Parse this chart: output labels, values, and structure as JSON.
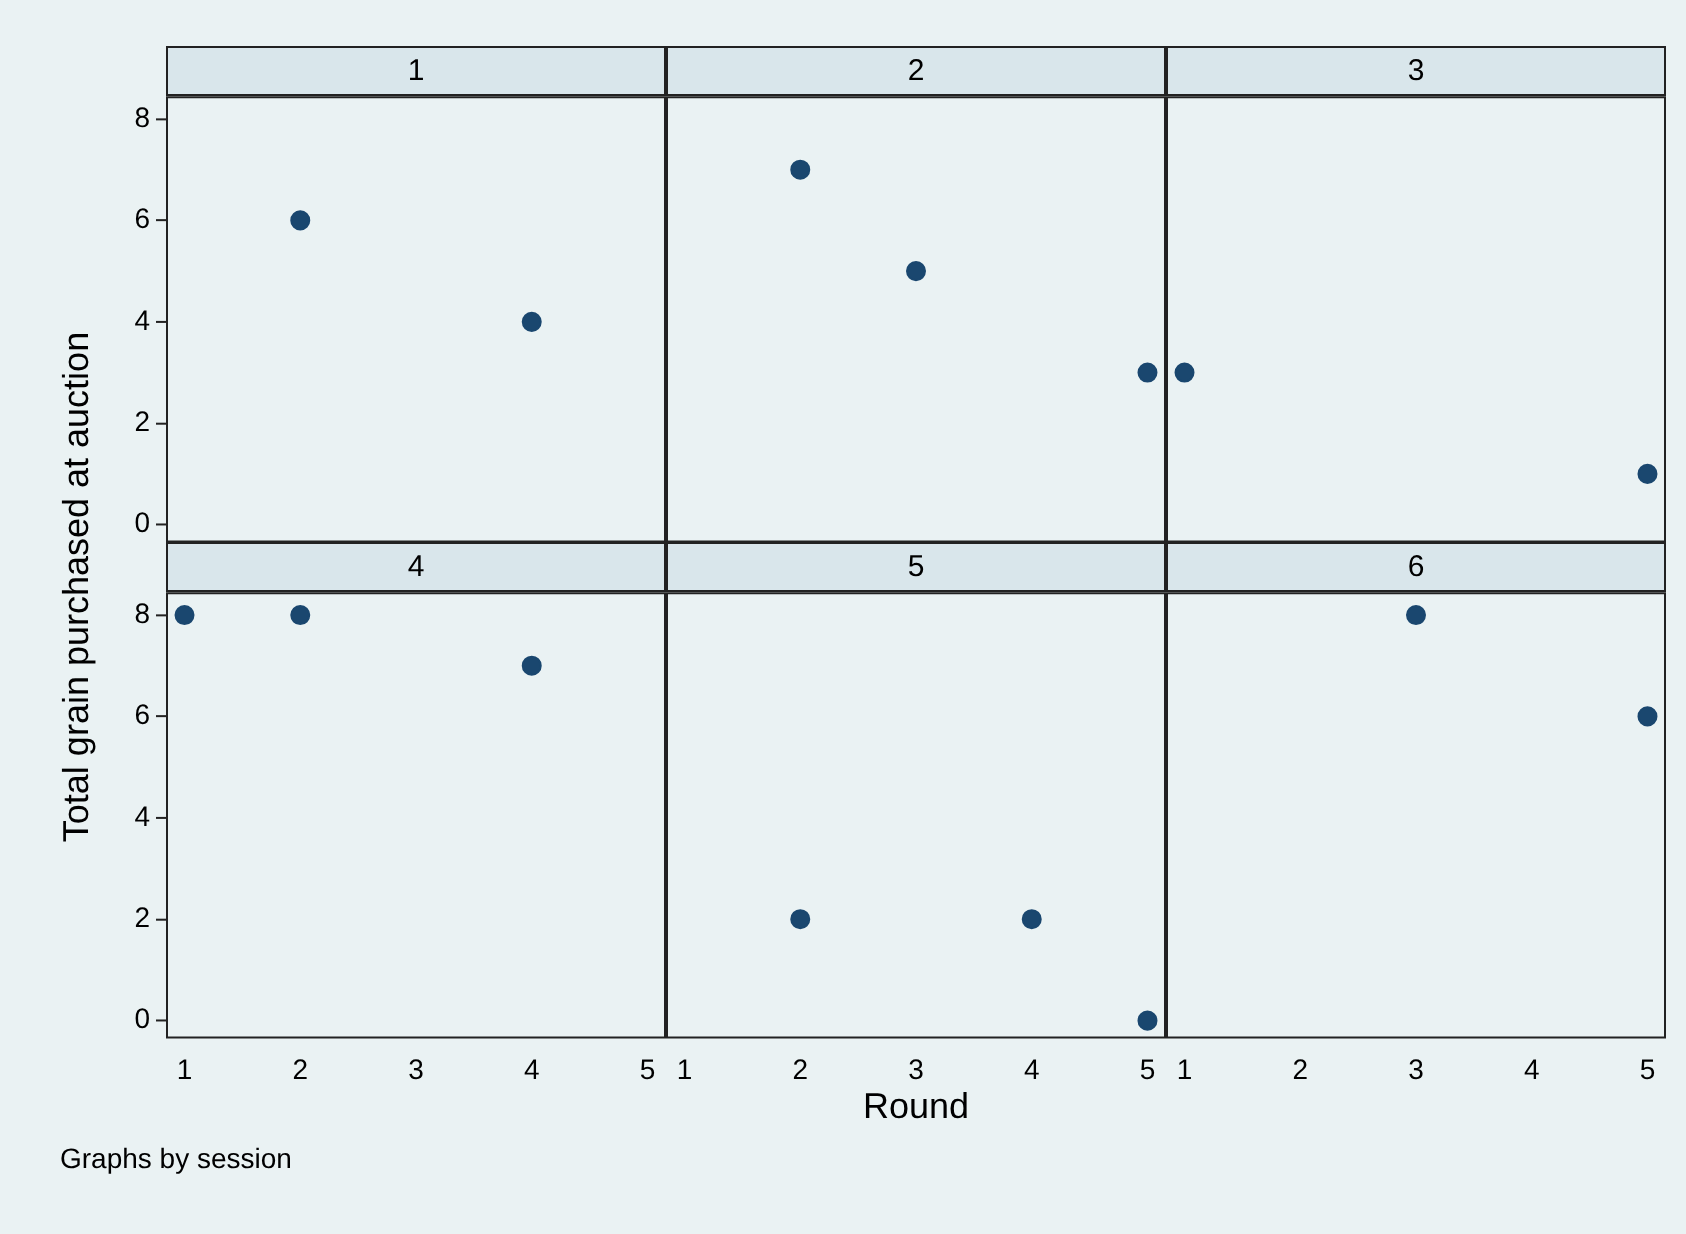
{
  "chart_data": [
    {
      "type": "scatter",
      "title": "1",
      "ylabel": "Total grain purchased at auction",
      "x": [
        2,
        4
      ],
      "values": [
        6,
        4
      ],
      "color": "#1a476f",
      "marker": "circle",
      "xlim": [
        0.84,
        5.16
      ],
      "ylim": [
        -0.35,
        8.45
      ],
      "xticks": [
        1,
        2,
        3,
        4,
        5
      ],
      "yticks": [
        0,
        2,
        4,
        6,
        8
      ],
      "tick_labels": "y"
    },
    {
      "type": "scatter",
      "title": "2",
      "x": [
        2,
        3,
        5
      ],
      "values": [
        7,
        5,
        3
      ],
      "color": "#1a476f",
      "marker": "circle",
      "xlim": [
        0.84,
        5.16
      ],
      "ylim": [
        -0.35,
        8.45
      ],
      "xticks": [
        1,
        2,
        3,
        4,
        5
      ],
      "yticks": [
        0,
        2,
        4,
        6,
        8
      ],
      "tick_labels": false
    },
    {
      "type": "scatter",
      "title": "3",
      "x": [
        1,
        5
      ],
      "values": [
        3,
        1
      ],
      "color": "#1a476f",
      "marker": "circle",
      "xlim": [
        0.84,
        5.16
      ],
      "ylim": [
        -0.35,
        8.45
      ],
      "xticks": [
        1,
        2,
        3,
        4,
        5
      ],
      "yticks": [
        0,
        2,
        4,
        6,
        8
      ],
      "tick_labels": false
    },
    {
      "type": "scatter",
      "title": "4",
      "x": [
        1,
        2,
        4
      ],
      "values": [
        8,
        8,
        7
      ],
      "color": "#1a476f",
      "marker": "circle",
      "xlim": [
        0.84,
        5.16
      ],
      "ylim": [
        -0.35,
        8.45
      ],
      "xticks": [
        1,
        2,
        3,
        4,
        5
      ],
      "yticks": [
        0,
        2,
        4,
        6,
        8
      ],
      "annotations": [
        "Graphs by session"
      ]
    },
    {
      "type": "scatter",
      "title": "5",
      "xlabel": "Round",
      "x": [
        2,
        4,
        5
      ],
      "values": [
        2,
        2,
        0
      ],
      "color": "#1a476f",
      "marker": "circle",
      "xlim": [
        0.84,
        5.16
      ],
      "ylim": [
        -0.35,
        8.45
      ],
      "xticks": [
        1,
        2,
        3,
        4,
        5
      ],
      "yticks": [
        0,
        2,
        4,
        6,
        8
      ],
      "tick_labels": "x"
    },
    {
      "type": "scatter",
      "title": "6",
      "x": [
        3,
        5
      ],
      "values": [
        8,
        6
      ],
      "color": "#1a476f",
      "marker": "circle",
      "xlim": [
        0.84,
        5.16
      ],
      "ylim": [
        -0.35,
        8.45
      ],
      "xticks": [
        1,
        2,
        3,
        4,
        5
      ],
      "yticks": [
        0,
        2,
        4,
        6,
        8
      ],
      "tick_labels": "x"
    }
  ]
}
